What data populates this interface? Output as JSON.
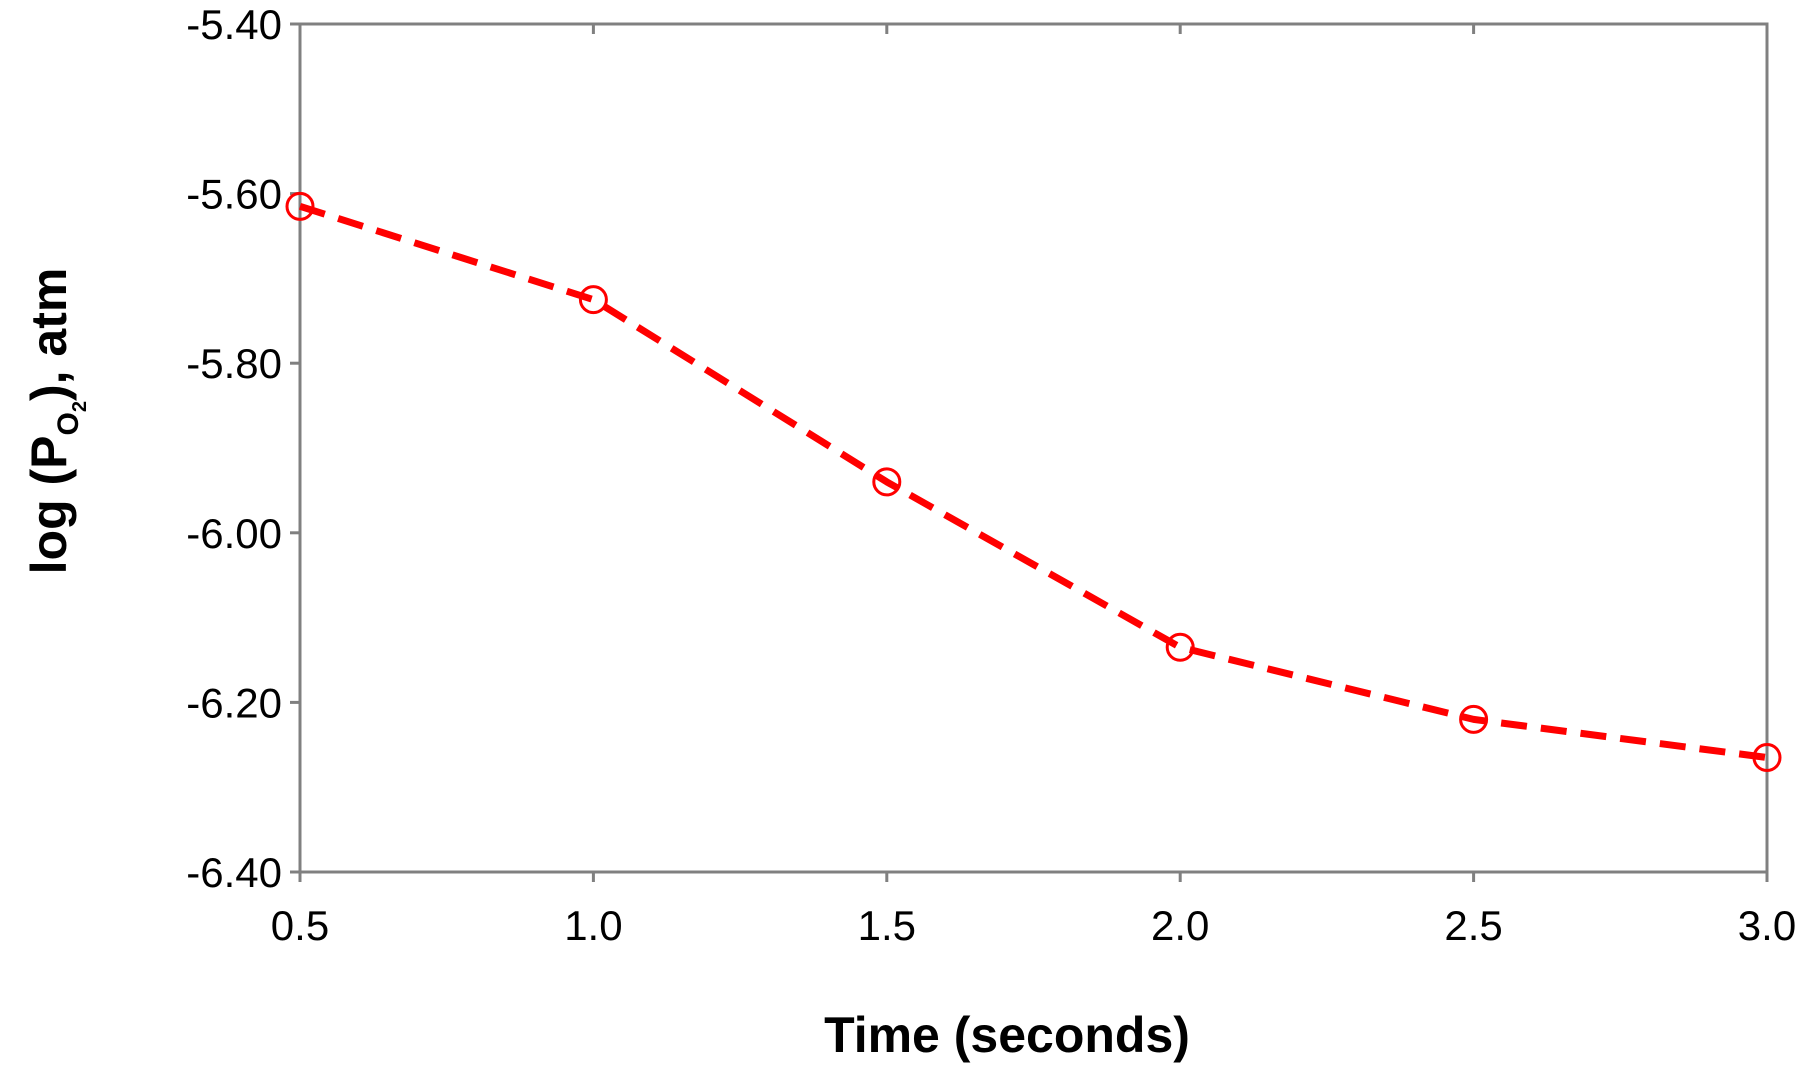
{
  "chart_data": {
    "type": "line",
    "title": "",
    "xlabel": "Time (seconds)",
    "ylabel": {
      "prefix": "log (P",
      "subscript": "O",
      "subsubscript": "2",
      "suffix": "), atm"
    },
    "x": [
      0.5,
      1.0,
      1.5,
      2.0,
      2.5,
      3.0
    ],
    "series": [
      {
        "values": [
          -5.615,
          -5.725,
          -5.94,
          -6.135,
          -6.22,
          -6.265
        ],
        "color": "#ff0000",
        "line_style": "dashed",
        "marker": "open-circle"
      }
    ],
    "xlim": [
      0.5,
      3.0
    ],
    "ylim": [
      -6.4,
      -5.4
    ],
    "x_ticks": [
      0.5,
      1.0,
      1.5,
      2.0,
      2.5,
      3.0
    ],
    "x_tick_labels": [
      "0.5",
      "1.0",
      "1.5",
      "2.0",
      "2.5",
      "3.0"
    ],
    "y_ticks": [
      -5.4,
      -5.6,
      -5.8,
      -6.0,
      -6.2,
      -6.4
    ],
    "y_tick_labels": [
      "-5.40",
      "-5.60",
      "-5.80",
      "-6.00",
      "-6.20",
      "-6.40"
    ],
    "grid": false,
    "legend": "none",
    "frame_color": "#808080"
  }
}
